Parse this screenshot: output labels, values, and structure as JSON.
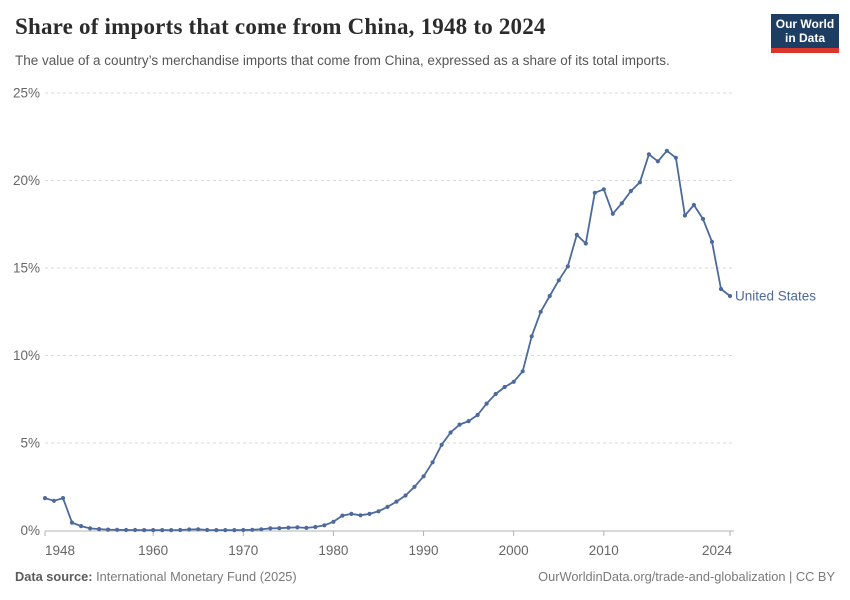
{
  "header": {
    "title": "Share of imports that come from China, 1948 to 2024",
    "subtitle": "The value of a country’s merchandise imports that come from China, expressed as a share of its total imports.",
    "logo": {
      "line1": "Our World",
      "line2": "in Data",
      "bg_color": "#1d3d63",
      "accent_color": "#dc352c"
    }
  },
  "footer": {
    "source_label": "Data source:",
    "source_value": " International Monetary Fund (2025)",
    "link": "OurWorldinData.org/trade-and-globalization",
    "license": " | CC BY"
  },
  "colors": {
    "line": "#4C6A9C",
    "grid": "#dadada",
    "axis": "#b3b3b3",
    "tick_label": "#666666",
    "title": "#2b2b2b",
    "subtitle": "#565656",
    "footer": "#7a7a7a"
  },
  "chart_data": {
    "type": "line",
    "title": "Share of imports that come from China, 1948 to 2024",
    "xlabel": "",
    "ylabel": "",
    "x_range": [
      1948,
      2024
    ],
    "ylim": [
      0,
      25
    ],
    "yticks": [
      0,
      5,
      10,
      15,
      20,
      25
    ],
    "ytick_labels": [
      "0%",
      "5%",
      "10%",
      "15%",
      "20%",
      "25%"
    ],
    "xticks": [
      1948,
      1960,
      1970,
      1980,
      1990,
      2000,
      2010,
      2024
    ],
    "grid": "horizontal dashed",
    "legend": "entity label at right end of line",
    "series": [
      {
        "name": "United States",
        "color": "#4C6A9C",
        "x": [
          1948,
          1949,
          1950,
          1951,
          1952,
          1953,
          1954,
          1955,
          1956,
          1957,
          1958,
          1959,
          1960,
          1961,
          1962,
          1963,
          1964,
          1965,
          1966,
          1967,
          1968,
          1969,
          1970,
          1971,
          1972,
          1973,
          1974,
          1975,
          1976,
          1977,
          1978,
          1979,
          1980,
          1981,
          1982,
          1983,
          1984,
          1985,
          1986,
          1987,
          1988,
          1989,
          1990,
          1991,
          1992,
          1993,
          1994,
          1995,
          1996,
          1997,
          1998,
          1999,
          2000,
          2001,
          2002,
          2003,
          2004,
          2005,
          2006,
          2007,
          2008,
          2009,
          2010,
          2011,
          2012,
          2013,
          2014,
          2015,
          2016,
          2017,
          2018,
          2019,
          2020,
          2021,
          2022,
          2023,
          2024
        ],
        "values": [
          1.85,
          1.7,
          1.85,
          0.45,
          0.25,
          0.12,
          0.08,
          0.05,
          0.04,
          0.03,
          0.03,
          0.02,
          0.02,
          0.02,
          0.02,
          0.03,
          0.06,
          0.07,
          0.03,
          0.02,
          0.02,
          0.02,
          0.03,
          0.04,
          0.07,
          0.12,
          0.13,
          0.16,
          0.18,
          0.15,
          0.2,
          0.3,
          0.5,
          0.85,
          0.95,
          0.87,
          0.95,
          1.1,
          1.35,
          1.65,
          2.0,
          2.5,
          3.1,
          3.9,
          4.9,
          5.6,
          6.05,
          6.25,
          6.6,
          7.25,
          7.8,
          8.2,
          8.5,
          9.1,
          11.1,
          12.5,
          13.4,
          14.3,
          15.1,
          16.9,
          16.4,
          19.3,
          19.5,
          18.1,
          18.7,
          19.4,
          19.9,
          21.5,
          21.1,
          21.7,
          21.3,
          18.0,
          18.6,
          17.8,
          16.5,
          13.8,
          13.4
        ]
      }
    ]
  }
}
